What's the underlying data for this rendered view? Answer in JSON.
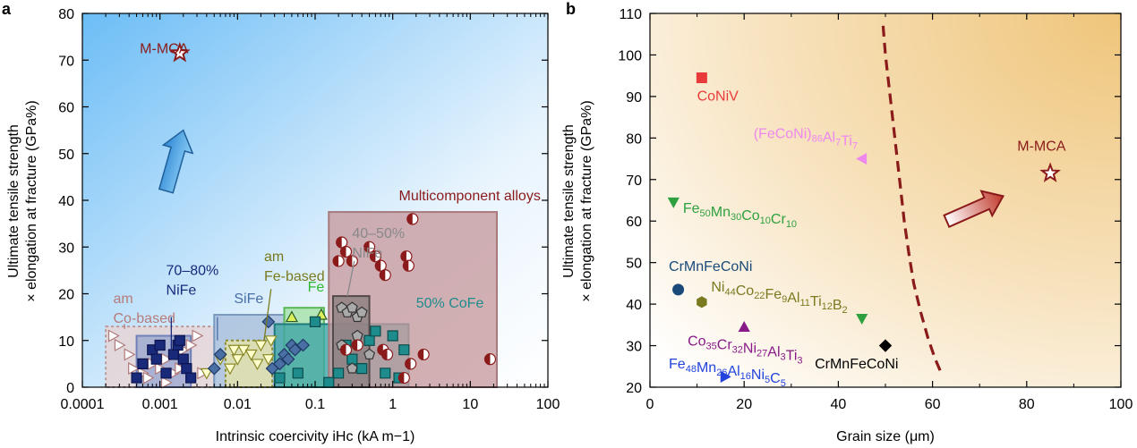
{
  "panels": [
    {
      "letter": "a"
    },
    {
      "letter": "b"
    }
  ],
  "chart_data": [
    {
      "panel": "a",
      "type": "scatter",
      "xscale": "log",
      "xlim": [
        0.0001,
        100
      ],
      "ylim": [
        0,
        80
      ],
      "xticks": [
        "0.0001",
        "0.001",
        "0.01",
        "0.1",
        "1",
        "10",
        "100"
      ],
      "yticks": [
        "0",
        "10",
        "20",
        "30",
        "40",
        "50",
        "60",
        "70",
        "80"
      ],
      "xlabel": "Intrinsic coercivity iHc (kA m−1)",
      "ylabel_line1": "Ultimate tensile strength",
      "ylabel_line2": "× elongation at fracture (GPa%)",
      "background_gradient": [
        "#7fc6f5",
        "#ffffff"
      ],
      "annotations": [
        {
          "name": "m-mca",
          "lines": [
            "M-MCA"
          ],
          "x": 0.00055,
          "y": 71.5,
          "color": "#8b1a1a"
        },
        {
          "name": "multicomponent",
          "lines": [
            "Multicomponent alloys"
          ],
          "x": 1.2,
          "y": 40,
          "color": "#8b1a1a"
        },
        {
          "name": "am-co-based",
          "lines": [
            "am",
            "Co-based"
          ],
          "x": 0.00025,
          "y": 18,
          "color": "#b77b7b"
        },
        {
          "name": "nife-70-80",
          "lines": [
            "70–80%",
            "NiFe"
          ],
          "x": 0.0012,
          "y": 24,
          "color": "#1a2a7a"
        },
        {
          "name": "sife",
          "lines": [
            "SiFe"
          ],
          "x": 0.009,
          "y": 18,
          "color": "#4a6fa5"
        },
        {
          "name": "am-fe-based",
          "lines": [
            "am",
            "Fe-based"
          ],
          "x": 0.022,
          "y": 27,
          "color": "#7a7a20"
        },
        {
          "name": "fe",
          "lines": [
            "Fe"
          ],
          "x": 0.08,
          "y": 20.5,
          "color": "#2fb82f"
        },
        {
          "name": "nife-40-50",
          "lines": [
            "40–50%",
            "NiFe"
          ],
          "x": 0.3,
          "y": 32,
          "color": "#888888"
        },
        {
          "name": "cofe-50",
          "lines": [
            "50% CoFe"
          ],
          "x": 2.0,
          "y": 17,
          "color": "#1e8c8c"
        }
      ],
      "regions": [
        {
          "name": "am-co-based-region",
          "x": [
            0.0002,
            0.005
          ],
          "y": [
            0,
            13
          ],
          "fill": "#e8d4d4",
          "stroke": "#b99",
          "dashed": true
        },
        {
          "name": "nife-70-80-region",
          "x": [
            0.0005,
            0.0025
          ],
          "y": [
            0,
            11
          ],
          "fill": "#9aa6cf",
          "stroke": "#6f7fb8",
          "dashed": false
        },
        {
          "name": "sife-region",
          "x": [
            0.005,
            0.04
          ],
          "y": [
            0,
            15.5
          ],
          "fill": "#a6bcd8",
          "stroke": "#7a9ac0",
          "dashed": false
        },
        {
          "name": "am-fe-based-region",
          "x": [
            0.007,
            0.028
          ],
          "y": [
            0,
            10
          ],
          "fill": "#e5e4a8",
          "stroke": "#8a8a2a",
          "dashed": true
        },
        {
          "name": "fe-region",
          "x": [
            0.04,
            0.13
          ],
          "y": [
            0,
            17
          ],
          "fill": "#a3e0a3",
          "stroke": "#5ab85a",
          "dashed": false
        },
        {
          "name": "cofe-50-region",
          "x": [
            0.03,
            1.6
          ],
          "y": [
            0,
            13.5
          ],
          "fill": "#3ea5a5",
          "stroke": "#1e7b7b",
          "dashed": false
        },
        {
          "name": "multicomponent-region",
          "x": [
            0.15,
            22
          ],
          "y": [
            0,
            37.5
          ],
          "fill": "#c79a9e",
          "stroke": "#a77a7e",
          "dashed": false
        },
        {
          "name": "nife-40-50-region",
          "x": [
            0.17,
            0.5
          ],
          "y": [
            0,
            19.5
          ],
          "fill": "#8a7f80",
          "stroke": "#554a4a",
          "dashed": false
        }
      ],
      "series": [
        {
          "marker": "triangle-right",
          "fill": "#ffffff",
          "stroke": "#b07a7a",
          "points": [
            [
              0.00025,
              11
            ],
            [
              0.0003,
              9
            ],
            [
              0.0004,
              7
            ],
            [
              0.00045,
              4
            ],
            [
              0.0006,
              3
            ],
            [
              0.0007,
              2
            ],
            [
              0.0008,
              5
            ],
            [
              0.001,
              4
            ],
            [
              0.0012,
              6
            ],
            [
              0.0015,
              3
            ],
            [
              0.002,
              8
            ],
            [
              0.0025,
              9
            ],
            [
              0.003,
              11
            ],
            [
              0.0035,
              3
            ],
            [
              0.0012,
              1
            ],
            [
              0.0018,
              4
            ]
          ]
        },
        {
          "marker": "square",
          "fill": "#1a2a7a",
          "stroke": "#0b1450",
          "points": [
            [
              0.0005,
              2
            ],
            [
              0.0006,
              5
            ],
            [
              0.0008,
              8
            ],
            [
              0.0009,
              6
            ],
            [
              0.001,
              9
            ],
            [
              0.0012,
              3
            ],
            [
              0.0015,
              7
            ],
            [
              0.0017,
              9
            ],
            [
              0.002,
              6
            ],
            [
              0.0022,
              4
            ],
            [
              0.0018,
              10
            ],
            [
              0.0025,
              2
            ]
          ]
        },
        {
          "marker": "triangle-down",
          "fill": "#ffffcc",
          "stroke": "#8a8a2a",
          "points": [
            [
              0.004,
              3
            ],
            [
              0.006,
              6
            ],
            [
              0.008,
              4
            ],
            [
              0.01,
              6
            ],
            [
              0.012,
              8
            ],
            [
              0.015,
              7
            ],
            [
              0.018,
              5
            ],
            [
              0.02,
              9
            ],
            [
              0.025,
              6
            ],
            [
              0.027,
              10
            ],
            [
              0.009,
              8
            ]
          ]
        },
        {
          "marker": "diamond",
          "fill": "#4a6fa5",
          "stroke": "#1f3a66",
          "points": [
            [
              0.005,
              4
            ],
            [
              0.006,
              7
            ],
            [
              0.025,
              14
            ],
            [
              0.028,
              4
            ],
            [
              0.035,
              5
            ],
            [
              0.04,
              7
            ],
            [
              0.045,
              6
            ],
            [
              0.05,
              9
            ],
            [
              0.055,
              8
            ],
            [
              0.07,
              9
            ]
          ]
        },
        {
          "marker": "triangle-up",
          "fill": "#ddf05a",
          "stroke": "#2a5a2a",
          "points": [
            [
              0.05,
              15
            ],
            [
              0.12,
              15.5
            ]
          ]
        },
        {
          "marker": "square",
          "fill": "#1e8c8c",
          "stroke": "#0b4b4b",
          "points": [
            [
              0.035,
              2
            ],
            [
              0.06,
              3
            ],
            [
              0.1,
              14
            ],
            [
              0.2,
              3
            ],
            [
              0.25,
              9
            ],
            [
              0.3,
              6
            ],
            [
              0.4,
              4
            ],
            [
              0.5,
              10
            ],
            [
              0.6,
              12
            ],
            [
              0.8,
              3
            ],
            [
              1.0,
              11
            ],
            [
              1.2,
              2
            ],
            [
              1.4,
              8
            ],
            [
              0.15,
              1
            ]
          ]
        },
        {
          "marker": "pentagon",
          "fill": "#aaaaaa",
          "stroke": "#333333",
          "points": [
            [
              0.22,
              17
            ],
            [
              0.26,
              16
            ],
            [
              0.3,
              17
            ],
            [
              0.35,
              15
            ],
            [
              0.4,
              16
            ],
            [
              0.22,
              9
            ],
            [
              0.3,
              4
            ],
            [
              0.35,
              11
            ],
            [
              0.5,
              7
            ]
          ]
        },
        {
          "marker": "half-circle",
          "fill": "#8b1a1a",
          "stroke": "#8b1a1a",
          "points": [
            [
              0.2,
              27
            ],
            [
              0.22,
              31
            ],
            [
              0.25,
              29
            ],
            [
              0.25,
              8
            ],
            [
              0.3,
              27
            ],
            [
              0.35,
              9
            ],
            [
              0.5,
              30
            ],
            [
              0.6,
              28
            ],
            [
              0.7,
              26
            ],
            [
              0.75,
              8
            ],
            [
              0.8,
              24
            ],
            [
              0.85,
              7
            ],
            [
              1.5,
              28
            ],
            [
              1.6,
              26
            ],
            [
              1.8,
              36
            ],
            [
              1.7,
              5
            ],
            [
              1.4,
              2
            ],
            [
              2.5,
              7
            ],
            [
              18,
              6
            ]
          ]
        }
      ],
      "arrow": {
        "from": [
          0.0012,
          42
        ],
        "to": [
          0.002,
          55
        ],
        "color": "#3a8fd8"
      },
      "mmca_star": {
        "x": 0.0018,
        "y": 71.5,
        "color": "#8b1a1a"
      }
    },
    {
      "panel": "b",
      "type": "scatter",
      "xlim": [
        0,
        100
      ],
      "ylim": [
        20,
        110
      ],
      "xticks": [
        "0",
        "20",
        "40",
        "60",
        "80",
        "100"
      ],
      "yticks": [
        "20",
        "30",
        "40",
        "50",
        "60",
        "70",
        "80",
        "90",
        "100",
        "110"
      ],
      "xlabel": "Grain size (μm)",
      "ylabel_line1": "Ultimate tensile strength",
      "ylabel_line2": "× elongation at fracture (GPa%)",
      "background_gradient": [
        "#ffffff",
        "#f0c878"
      ],
      "points": [
        {
          "label": "CoNiV",
          "label_plain": "CoNiV",
          "x": 11,
          "y": 94.5,
          "marker": "square",
          "color": "#e83a3a",
          "label_pos": [
            10,
            89
          ]
        },
        {
          "label": "(FeCoNi)86Al7Ti7",
          "label_plain": "(FeCoNi)86Al7Ti7",
          "x": 45,
          "y": 75,
          "marker": "triangle-left",
          "color": "#ee88ee",
          "label_pos": [
            22,
            80
          ]
        },
        {
          "label": "Fe50Mn30Co10Cr10",
          "label_plain": "Fe50Mn30Co10Cr10",
          "x": 5,
          "y": 64.5,
          "marker": "triangle-down",
          "color": "#2fa03f",
          "label_pos": [
            7,
            62
          ]
        },
        {
          "label": "CrMnFeCoNi",
          "label_plain": "CrMnFeCoNi",
          "x": 6,
          "y": 43.5,
          "marker": "circle",
          "color": "#1a4a7a",
          "label_pos": [
            4,
            48
          ]
        },
        {
          "label": "Ni44Co22Fe9Al11Ti12B2",
          "label_plain": "Ni44Co22Fe9Al11Ti12B2",
          "x": 11,
          "y": 40.5,
          "marker": "hexagon",
          "color": "#7a7a20",
          "label_pos": [
            13,
            43
          ]
        },
        {
          "label": "Co35Cr32Ni27Al3Ti3",
          "label_plain": "Co35Cr32Ni27Al3Ti3",
          "x": 20,
          "y": 34.5,
          "marker": "triangle-up",
          "color": "#881a88",
          "label_pos": [
            8,
            30
          ]
        },
        {
          "label": "",
          "label_plain": "",
          "x": 45,
          "y": 36.5,
          "marker": "triangle-down",
          "color": "#2fa03f",
          "label_pos": [
            0,
            0
          ]
        },
        {
          "label": "CrMnFeCoNi",
          "label_plain": "CrMnFeCoNi",
          "x": 50,
          "y": 30,
          "marker": "diamond",
          "color": "#000000",
          "label_pos": [
            35,
            24.5
          ]
        },
        {
          "label": "Fe48Mn26Al16Ni5C5",
          "label_plain": "Fe48Mn26Al16Ni5C5",
          "x": 16,
          "y": 22.5,
          "marker": "triangle-right",
          "color": "#2244dd",
          "label_pos": [
            4,
            24.5
          ]
        },
        {
          "label": "M-MCA",
          "label_plain": "M-MCA",
          "x": 85,
          "y": 71.5,
          "marker": "star",
          "color": "#8b1a1a",
          "label_pos": [
            78,
            77
          ]
        }
      ],
      "boundary_curve": {
        "color": "#8b1a1a",
        "points": [
          [
            49.5,
            107
          ],
          [
            50,
            100
          ],
          [
            51,
            90
          ],
          [
            52,
            80
          ],
          [
            53,
            70
          ],
          [
            54,
            60
          ],
          [
            55,
            52
          ],
          [
            56,
            45
          ],
          [
            57.5,
            38
          ],
          [
            59,
            32
          ],
          [
            60.5,
            27
          ],
          [
            62,
            23
          ]
        ]
      },
      "arrow": {
        "from": [
          63,
          60
        ],
        "to": [
          75,
          66
        ],
        "color": "#c0392b"
      }
    }
  ]
}
